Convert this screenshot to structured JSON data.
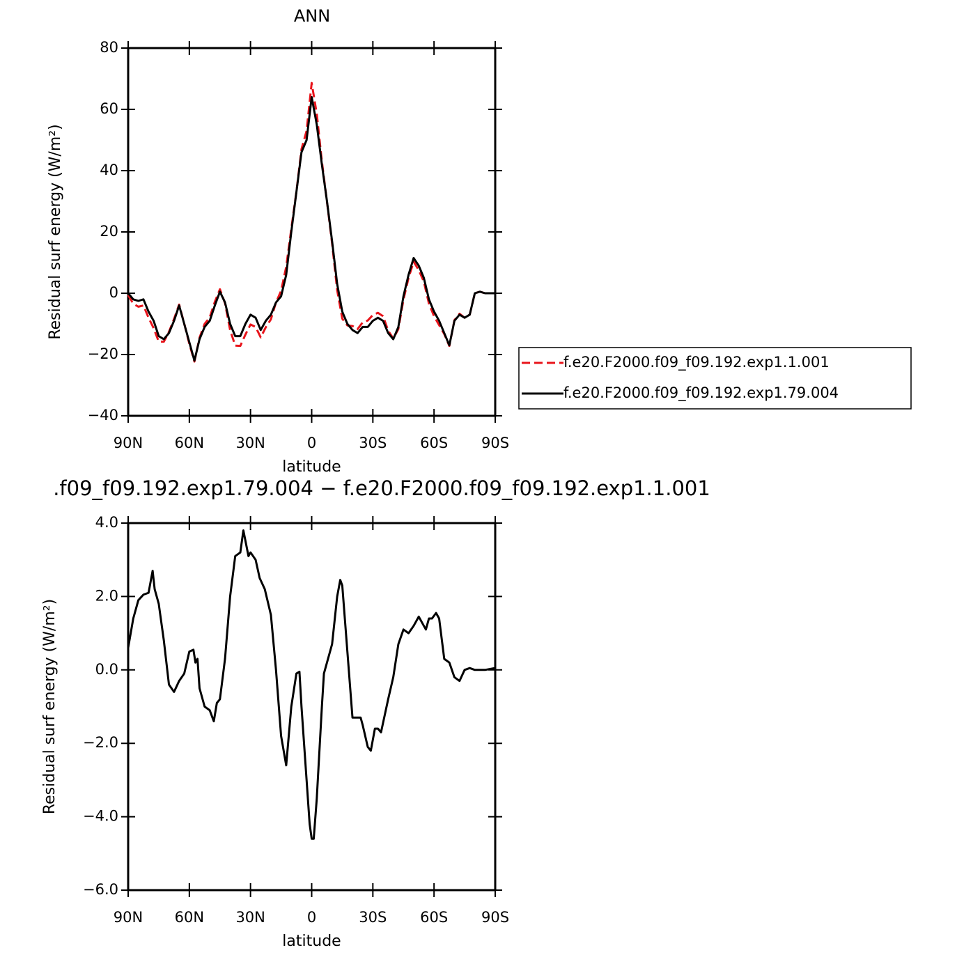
{
  "chart_data": [
    {
      "type": "line",
      "title": "ANN",
      "xlabel": "latitude",
      "ylabel": "Residual surf energy (W/m²)",
      "x": [
        90,
        87.5,
        85,
        82.5,
        80,
        77.5,
        75,
        72.5,
        70,
        67.5,
        65,
        62.5,
        60,
        57.5,
        55,
        52.5,
        50,
        47.5,
        45,
        42.5,
        40,
        37.5,
        35,
        32.5,
        30,
        27.5,
        25,
        22.5,
        20,
        17.5,
        15,
        12.5,
        10,
        7.5,
        5,
        2.5,
        0,
        -2.5,
        -5,
        -7.5,
        -10,
        -12.5,
        -15,
        -17.5,
        -20,
        -22.5,
        -25,
        -27.5,
        -30,
        -32.5,
        -35,
        -37.5,
        -40,
        -42.5,
        -45,
        -47.5,
        -50,
        -52.5,
        -55,
        -57.5,
        -60,
        -62.5,
        -65,
        -67.5,
        -70,
        -72.5,
        -75,
        -77.5,
        -80,
        -82.5,
        -85,
        -87.5,
        -90
      ],
      "series": [
        {
          "name": "f.e20.F2000.f09_f09.192.exp1.1.001",
          "color": "#e8141b",
          "dashed": true,
          "values": [
            -0.6,
            -3.4,
            -4.4,
            -4,
            -8,
            -11.4,
            -15.8,
            -15.8,
            -12.6,
            -8.4,
            -3.7,
            -9.9,
            -16.5,
            -22.3,
            -14.5,
            -10,
            -7.9,
            -2.8,
            1.3,
            -3.3,
            -12,
            -17.1,
            -17.2,
            -13.5,
            -10.2,
            -11,
            -14.4,
            -11.1,
            -8.5,
            -3,
            0.8,
            8.6,
            21,
            33.1,
            47,
            53,
            68.6,
            58.5,
            43,
            29.8,
            16.3,
            1,
            -8.3,
            -10.5,
            -10.7,
            -11.7,
            -9.5,
            -8.9,
            -7.1,
            -6.4,
            -7.5,
            -12.2,
            -14.8,
            -11.7,
            -2.1,
            5,
            10.3,
            7.55,
            3.8,
            -3.4,
            -7.5,
            -10.4,
            -13.3,
            -17.2,
            -8.8,
            -6.7,
            -8,
            -7,
            0,
            0.5,
            0,
            0,
            0
          ]
        },
        {
          "name": "f.e20.F2000.f09_f09.192.exp1.79.004",
          "color": "#000000",
          "dashed": false,
          "values": [
            0,
            -2,
            -2.5,
            -2,
            -6,
            -9,
            -14,
            -15,
            -13,
            -9,
            -4,
            -10,
            -16,
            -22,
            -15,
            -11,
            -9,
            -4,
            0.5,
            -3,
            -10,
            -14,
            -14,
            -10,
            -7,
            -8,
            -12,
            -9,
            -7,
            -3,
            -1,
            6,
            20,
            33,
            46,
            50,
            64,
            55,
            42,
            30,
            17,
            3,
            -6,
            -10,
            -12,
            -13,
            -11,
            -11,
            -9,
            -8,
            -9,
            -13,
            -15,
            -11,
            -1,
            6,
            11.5,
            9,
            5,
            -2,
            -6,
            -9,
            -13,
            -17,
            -9,
            -7,
            -8,
            -7,
            0,
            0.5,
            0,
            0,
            0
          ]
        }
      ],
      "xlim": [
        90,
        -90
      ],
      "xticks": [
        {
          "value": 90,
          "label": "90N"
        },
        {
          "value": 60,
          "label": "60N"
        },
        {
          "value": 30,
          "label": "30N"
        },
        0,
        {
          "value": -30,
          "label": "30S"
        },
        {
          "value": -60,
          "label": "60S"
        },
        {
          "value": -90,
          "label": "90S"
        }
      ],
      "ylim": [
        -40,
        80
      ],
      "yticks": [
        {
          "value": -40,
          "label": "−40"
        },
        {
          "value": -20,
          "label": "−20"
        },
        0,
        20,
        40,
        60,
        80
      ],
      "grid": false,
      "legend": "right"
    },
    {
      "type": "line",
      "title": ".f09_f09.192.exp1.79.004 − f.e20.F2000.f09_f09.192.exp1.1.001",
      "xlabel": "latitude",
      "ylabel": "Residual surf energy (W/m²)",
      "x": [
        90,
        87.5,
        85,
        82.5,
        80,
        78,
        77,
        75,
        72.5,
        70,
        67.5,
        65,
        62.5,
        60,
        58,
        57,
        56,
        55,
        52.5,
        50,
        48,
        46.5,
        45,
        42.5,
        40,
        37.5,
        35,
        33.5,
        31,
        30,
        27.5,
        25.5,
        23,
        20,
        17.5,
        15,
        12.5,
        10,
        7.5,
        6,
        5,
        2.5,
        1,
        0,
        -1,
        -2.5,
        -5,
        -6,
        -10,
        -12.5,
        -14,
        -15,
        -17.5,
        -20,
        -22,
        -24,
        -25,
        -27.5,
        -29,
        -31,
        -32.5,
        -34,
        -37.5,
        -40,
        -42.5,
        -45,
        -47.5,
        -50,
        -52.5,
        -55,
        -56,
        -57.5,
        -59,
        -61,
        -62.5,
        -65,
        -67.5,
        -70,
        -72.5,
        -75,
        -77.5,
        -80,
        -85,
        -90
      ],
      "values": [
        0.6,
        1.4,
        1.9,
        2.05,
        2.1,
        2.7,
        2.2,
        1.8,
        0.8,
        -0.4,
        -0.6,
        -0.3,
        -0.1,
        0.5,
        0.55,
        0.2,
        0.3,
        -0.5,
        -1.0,
        -1.1,
        -1.4,
        -0.9,
        -0.8,
        0.3,
        2.0,
        3.1,
        3.2,
        3.8,
        3.1,
        3.2,
        3.0,
        2.5,
        2.2,
        1.5,
        0,
        -1.8,
        -2.6,
        -1.0,
        -0.1,
        -0.05,
        -1.0,
        -3.0,
        -4.2,
        -4.6,
        -4.6,
        -3.5,
        -1.0,
        -0.1,
        0.7,
        2.0,
        2.45,
        2.3,
        0.5,
        -1.3,
        -1.3,
        -1.3,
        -1.5,
        -2.1,
        -2.2,
        -1.6,
        -1.6,
        -1.7,
        -0.8,
        -0.2,
        0.7,
        1.1,
        1.0,
        1.2,
        1.45,
        1.2,
        1.1,
        1.4,
        1.4,
        1.55,
        1.4,
        0.3,
        0.2,
        -0.2,
        -0.3,
        0.0,
        0.05,
        0.0,
        0.0,
        0.05
      ],
      "color": "#000000",
      "xlim": [
        90,
        -90
      ],
      "xticks": [
        {
          "value": 90,
          "label": "90N"
        },
        {
          "value": 60,
          "label": "60N"
        },
        {
          "value": 30,
          "label": "30N"
        },
        0,
        {
          "value": -30,
          "label": "30S"
        },
        {
          "value": -60,
          "label": "60S"
        },
        {
          "value": -90,
          "label": "90S"
        }
      ],
      "ylim": [
        -6,
        4
      ],
      "yticks": [
        {
          "value": -6,
          "label": "−6.0"
        },
        {
          "value": -4,
          "label": "−4.0"
        },
        {
          "value": -2,
          "label": "−2.0"
        },
        {
          "value": 0,
          "label": "0.0"
        },
        {
          "value": 2,
          "label": "2.0"
        },
        {
          "value": 4,
          "label": "4.0"
        }
      ],
      "grid": false
    }
  ]
}
